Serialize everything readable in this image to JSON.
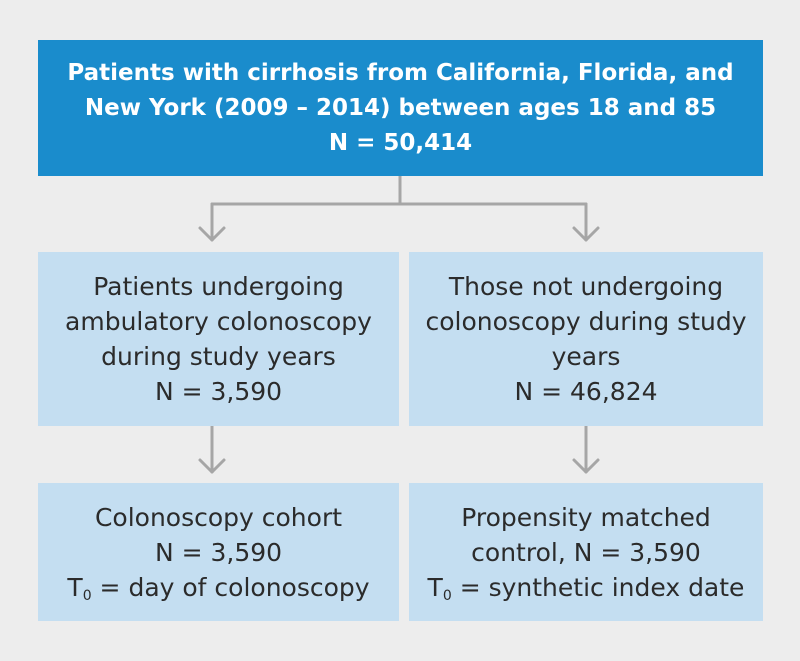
{
  "top_box": {
    "line1": "Patients with cirrhosis from California, Florida, and",
    "line2": "New York (2009 – 2014) between ages 18 and 85",
    "line3": "N = 50,414"
  },
  "left_branch": {
    "line1": "Patients undergoing",
    "line2": "ambulatory colonoscopy",
    "line3": "during study years",
    "line4": "N = 3,590"
  },
  "right_branch": {
    "line1": "Those not undergoing",
    "line2": "colonoscopy during study",
    "line3": "years",
    "line4": "N = 46,824"
  },
  "left_result": {
    "line1": "Colonoscopy cohort",
    "line2": "N = 3,590",
    "t_main": "T",
    "t_sub": "0",
    "t_rest": " = day of colonoscopy"
  },
  "right_result": {
    "line1": "Propensity matched",
    "line2": "control, N = 3,590",
    "t_main": "T",
    "t_sub": "0",
    "t_rest": " = synthetic index date"
  },
  "colors": {
    "top_box": "#1a8ccc",
    "light_box": "#c4def1",
    "connector": "#a6a6a6",
    "background": "#ededed"
  }
}
